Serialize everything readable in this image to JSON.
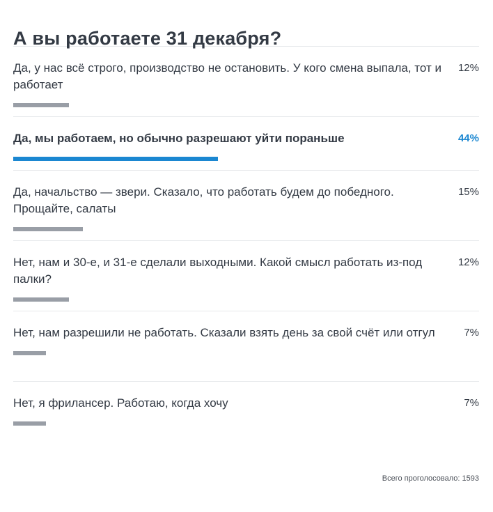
{
  "poll": {
    "title": "А вы работаете 31 декабря?",
    "accent_color": "#1b87d1",
    "bar_color": "#999ea6",
    "options": [
      {
        "label": "Да, у нас всё строго, производство не остановить. У кого смена выпала, тот и работает",
        "percent_label": "12%",
        "percent": 12,
        "selected": false
      },
      {
        "label": "Да, мы работаем, но обычно разрешают уйти пораньше",
        "percent_label": "44%",
        "percent": 44,
        "selected": true
      },
      {
        "label": "Да, начальство — звери. Сказало, что работать будем до победного. Прощайте, салаты",
        "percent_label": "15%",
        "percent": 15,
        "selected": false
      },
      {
        "label": "Нет, нам и 30-е, и 31-е сделали выходными. Какой смысл работать из-под палки?",
        "percent_label": "12%",
        "percent": 12,
        "selected": false
      },
      {
        "label": "Нет, нам разрешили не работать. Сказали взять день за свой счёт или отгул",
        "percent_label": "7%",
        "percent": 7,
        "selected": false
      },
      {
        "label": "Нет, я фрилансер. Работаю, когда хочу",
        "percent_label": "7%",
        "percent": 7,
        "selected": false
      }
    ],
    "total_votes_text": "Всего проголосовало: 1593"
  }
}
